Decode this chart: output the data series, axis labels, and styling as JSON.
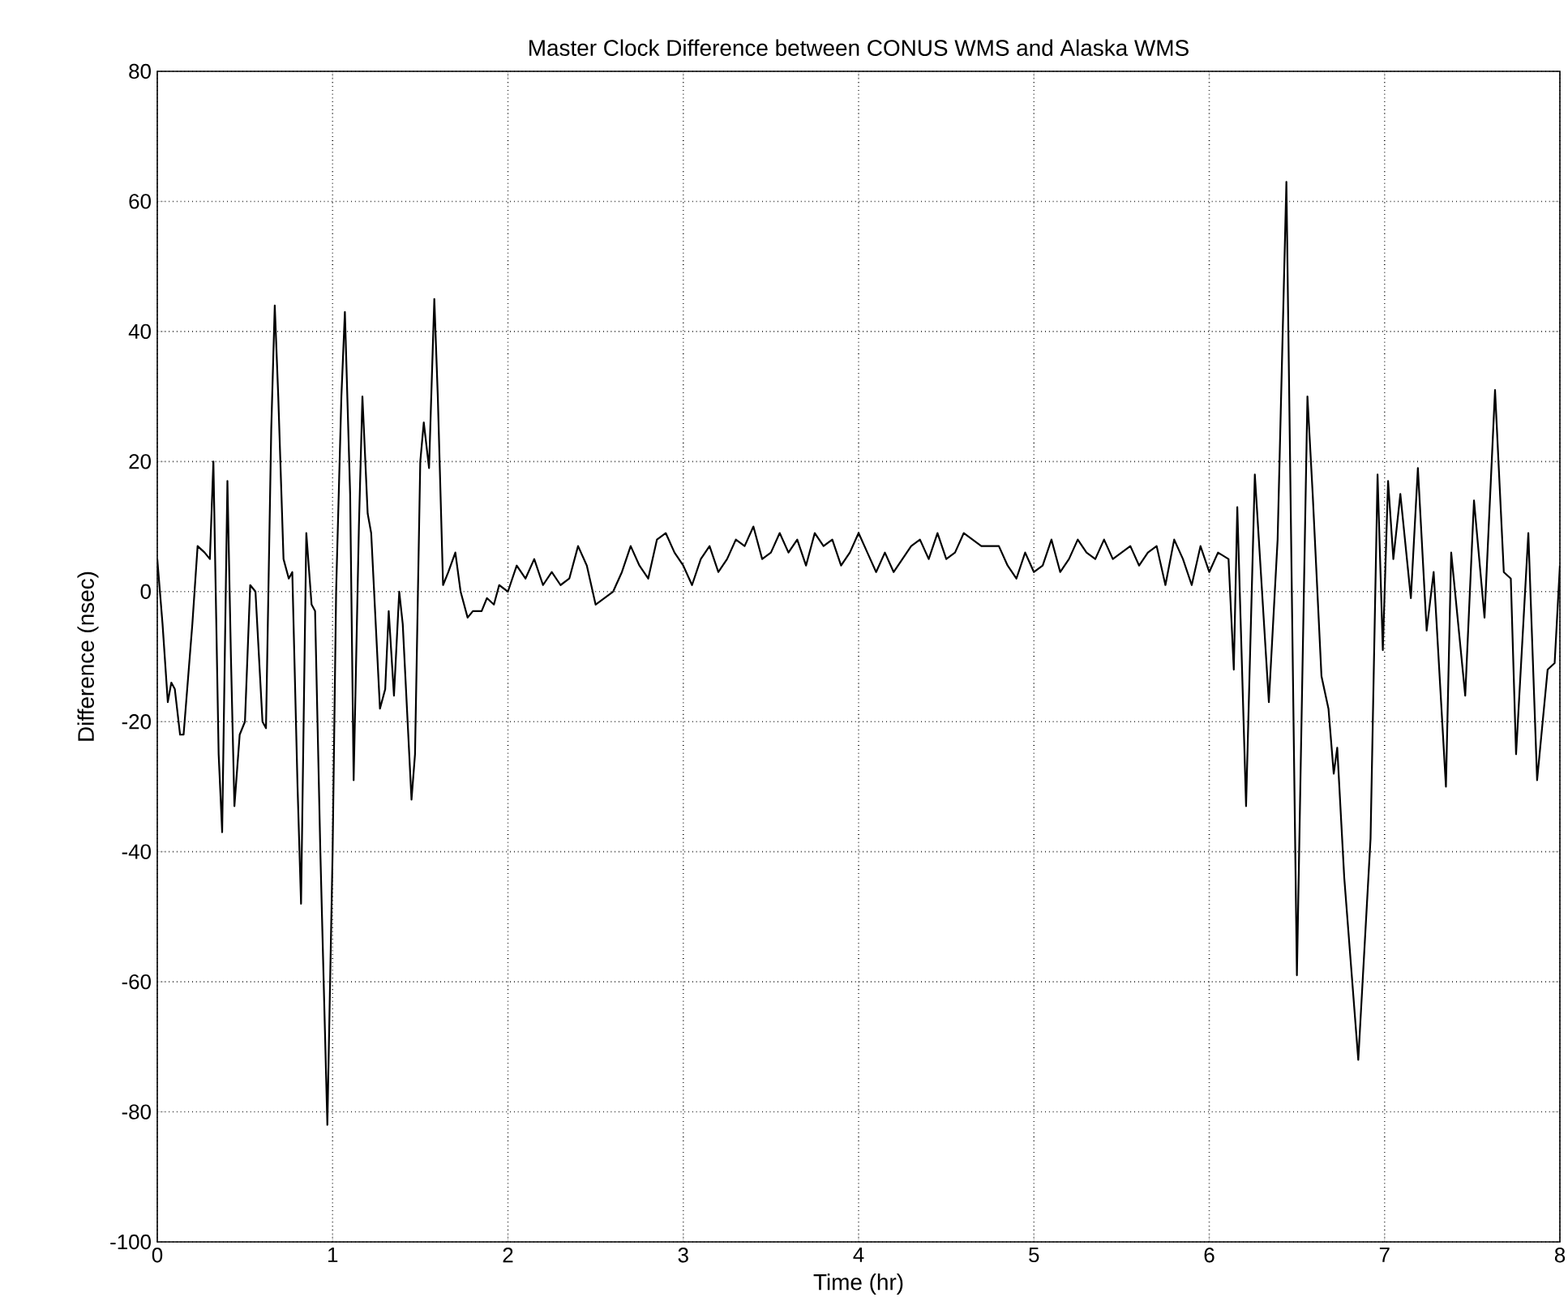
{
  "chart_data": {
    "type": "line",
    "title": "Master Clock Difference between CONUS WMS and Alaska WMS",
    "xlabel": "Time (hr)",
    "ylabel": "Difference (nsec)",
    "xlim": [
      0,
      8
    ],
    "ylim": [
      -100,
      80
    ],
    "xticks": [
      0,
      1,
      2,
      3,
      4,
      5,
      6,
      7,
      8
    ],
    "yticks": [
      -100,
      -80,
      -60,
      -40,
      -20,
      0,
      20,
      40,
      60,
      80
    ],
    "grid": true,
    "line_style": "solid",
    "series": [
      {
        "color": "#000000",
        "x": [
          0,
          0.03,
          0.06,
          0.08,
          0.1,
          0.13,
          0.15,
          0.2,
          0.23,
          0.27,
          0.3,
          0.32,
          0.35,
          0.37,
          0.4,
          0.42,
          0.44,
          0.47,
          0.5,
          0.53,
          0.56,
          0.6,
          0.62,
          0.65,
          0.67,
          0.69,
          0.72,
          0.75,
          0.77,
          0.8,
          0.82,
          0.85,
          0.88,
          0.9,
          0.93,
          0.97,
          1.0,
          1.02,
          1.05,
          1.07,
          1.1,
          1.12,
          1.15,
          1.17,
          1.2,
          1.22,
          1.27,
          1.3,
          1.32,
          1.35,
          1.38,
          1.4,
          1.45,
          1.47,
          1.5,
          1.52,
          1.55,
          1.58,
          1.6,
          1.63,
          1.66,
          1.7,
          1.73,
          1.77,
          1.8,
          1.85,
          1.88,
          1.92,
          1.95,
          2.0,
          2.05,
          2.1,
          2.15,
          2.2,
          2.25,
          2.3,
          2.35,
          2.4,
          2.45,
          2.5,
          2.55,
          2.6,
          2.65,
          2.7,
          2.75,
          2.8,
          2.85,
          2.9,
          2.95,
          3.0,
          3.05,
          3.1,
          3.15,
          3.2,
          3.25,
          3.3,
          3.35,
          3.4,
          3.45,
          3.5,
          3.55,
          3.6,
          3.65,
          3.7,
          3.75,
          3.8,
          3.85,
          3.9,
          3.95,
          4.0,
          4.05,
          4.1,
          4.15,
          4.2,
          4.3,
          4.35,
          4.4,
          4.45,
          4.5,
          4.55,
          4.6,
          4.65,
          4.7,
          4.8,
          4.85,
          4.9,
          4.95,
          5.0,
          5.05,
          5.1,
          5.15,
          5.2,
          5.25,
          5.3,
          5.35,
          5.4,
          5.45,
          5.5,
          5.55,
          5.6,
          5.65,
          5.7,
          5.75,
          5.8,
          5.85,
          5.9,
          5.95,
          6.0,
          6.05,
          6.11,
          6.14,
          6.16,
          6.21,
          6.26,
          6.34,
          6.39,
          6.44,
          6.5,
          6.56,
          6.59,
          6.64,
          6.68,
          6.71,
          6.73,
          6.77,
          6.85,
          6.92,
          6.96,
          6.99,
          7.02,
          7.05,
          7.09,
          7.15,
          7.19,
          7.24,
          7.28,
          7.35,
          7.38,
          7.46,
          7.51,
          7.57,
          7.63,
          7.68,
          7.72,
          7.75,
          7.82,
          7.87,
          7.93,
          7.97,
          8.0
        ],
        "values": [
          5,
          -5,
          -17,
          -14,
          -15,
          -22,
          -22,
          -5,
          7,
          6,
          5,
          20,
          -25,
          -37,
          17,
          -10,
          -33,
          -22,
          -20,
          1,
          0,
          -20,
          -21,
          25,
          44,
          30,
          5,
          2,
          3,
          -30,
          -48,
          9,
          -2,
          -3,
          -40,
          -82,
          -40,
          0,
          30,
          43,
          15,
          -29,
          10,
          30,
          12,
          9,
          -18,
          -15,
          -3,
          -16,
          0,
          -5,
          -32,
          -25,
          20,
          26,
          19,
          45,
          30,
          1,
          3,
          6,
          0,
          -4,
          -3,
          -3,
          -1,
          -2,
          1,
          0,
          4,
          2,
          5,
          1,
          3,
          1,
          2,
          7,
          4,
          -2,
          -1,
          0,
          3,
          7,
          4,
          2,
          8,
          9,
          6,
          4,
          1,
          5,
          7,
          3,
          5,
          8,
          7,
          10,
          5,
          6,
          9,
          6,
          8,
          4,
          9,
          7,
          8,
          4,
          6,
          9,
          6,
          3,
          6,
          3,
          7,
          8,
          5,
          9,
          5,
          6,
          9,
          8,
          7,
          7,
          4,
          2,
          6,
          3,
          4,
          8,
          3,
          5,
          8,
          6,
          5,
          8,
          5,
          6,
          7,
          4,
          6,
          7,
          1,
          8,
          5,
          1,
          7,
          3,
          6,
          5,
          -12,
          13,
          -33,
          18,
          -17,
          8,
          63,
          -59,
          30,
          15,
          -13,
          -18,
          -28,
          -24,
          -44,
          -72,
          -38,
          18,
          -9,
          17,
          5,
          15,
          -1,
          19,
          -6,
          3,
          -30,
          6,
          -16,
          14,
          -4,
          31,
          3,
          2,
          -25,
          9,
          -29,
          -12,
          -11,
          4
        ]
      }
    ]
  }
}
